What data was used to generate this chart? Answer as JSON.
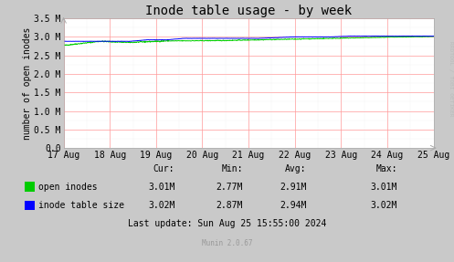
{
  "title": "Inode table usage - by week",
  "ylabel": "number of open inodes",
  "background_color": "#c9c9c9",
  "plot_bg_color": "#ffffff",
  "grid_color_major": "#ff9999",
  "grid_color_minor": "#e0e0e0",
  "ylim": [
    0,
    3500000
  ],
  "yticks": [
    0,
    500000,
    1000000,
    1500000,
    2000000,
    2500000,
    3000000,
    3500000
  ],
  "ytick_labels": [
    "0.0",
    "0.5 M",
    "1.0 M",
    "1.5 M",
    "2.0 M",
    "2.5 M",
    "3.0 M",
    "3.5 M"
  ],
  "x_dates": [
    "17 Aug",
    "18 Aug",
    "19 Aug",
    "20 Aug",
    "21 Aug",
    "22 Aug",
    "23 Aug",
    "24 Aug",
    "25 Aug"
  ],
  "open_inodes_color": "#00cc00",
  "inode_table_color": "#0000ff",
  "legend_labels": [
    "open inodes",
    "inode table size"
  ],
  "stats_header": [
    "Cur:",
    "Min:",
    "Avg:",
    "Max:"
  ],
  "open_inodes_stats": [
    "3.01M",
    "2.77M",
    "2.91M",
    "3.01M"
  ],
  "inode_table_stats": [
    "3.02M",
    "2.87M",
    "2.94M",
    "3.02M"
  ],
  "last_update": "Last update: Sun Aug 25 15:55:00 2024",
  "munin_label": "Munin 2.0.67",
  "rrdtool_label": "RRDTOOL / TOBI OETIKER",
  "title_fontsize": 10,
  "axis_fontsize": 7,
  "legend_fontsize": 7,
  "stats_fontsize": 7
}
